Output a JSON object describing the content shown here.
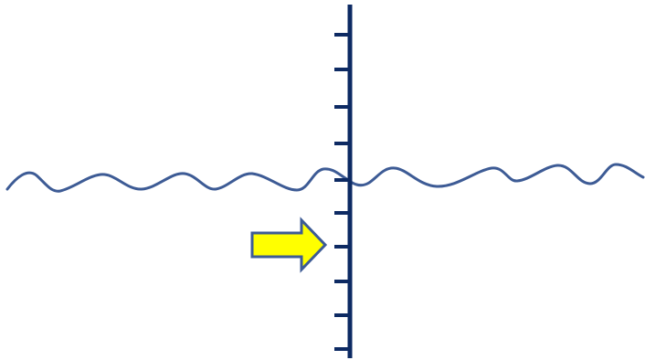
{
  "diagram": {
    "colors": {
      "background": "#ffffff",
      "axis": "#0d2a63",
      "wave": "#3d5b95",
      "arrow_fill": "#ffff00",
      "arrow_stroke": "#3d5b95"
    },
    "icons": {
      "pointer": "right-arrow-icon"
    }
  }
}
